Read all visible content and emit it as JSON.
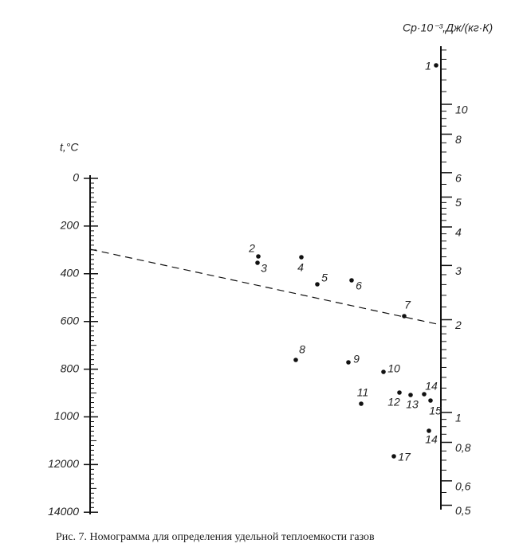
{
  "left_axis": {
    "label": "t,°C",
    "ticks": [
      0,
      200,
      400,
      600,
      800,
      1000,
      12000,
      14000
    ]
  },
  "right_axis": {
    "label": "Cр·10⁻³,Дж/(кг·К)",
    "log": true,
    "ticks": [
      10,
      8,
      6,
      5,
      4,
      3,
      2,
      1,
      {
        "value": 0.8,
        "label": "0,8"
      },
      {
        "value": 0.6,
        "label": "0,6"
      },
      {
        "value": 0.5,
        "label": "0,5"
      }
    ]
  },
  "points": [
    {
      "label": "1"
    },
    {
      "label": "2"
    },
    {
      "label": "3"
    },
    {
      "label": "4"
    },
    {
      "label": "5"
    },
    {
      "label": "6"
    },
    {
      "label": "7"
    },
    {
      "label": "8"
    },
    {
      "label": "9"
    },
    {
      "label": "10"
    },
    {
      "label": "11"
    },
    {
      "label": "12"
    },
    {
      "label": "13"
    },
    {
      "label": "14"
    },
    {
      "label": "15"
    },
    {
      "label": "14"
    },
    {
      "label": "17"
    }
  ],
  "caption": "Рис. 7. Номограмма для определения удельной теплоемкости газов"
}
